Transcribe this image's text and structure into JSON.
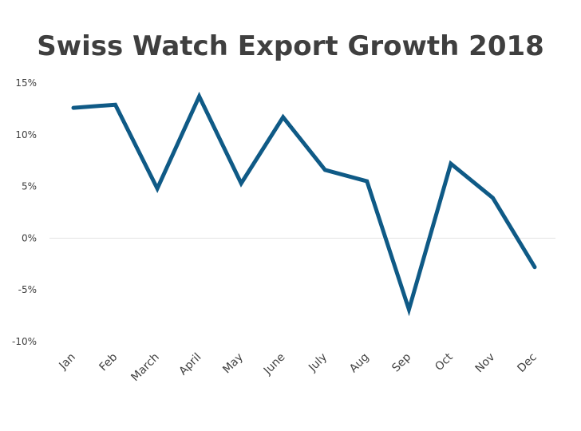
{
  "chart_data": {
    "type": "line",
    "title": "Swiss Watch Export Growth 2018",
    "xlabel": "",
    "ylabel": "",
    "categories": [
      "Jan",
      "Feb",
      "March",
      "April",
      "May",
      "June",
      "July",
      "Aug",
      "Sep",
      "Oct",
      "Nov",
      "Dec"
    ],
    "series": [
      {
        "values": [
          12.6,
          12.9,
          4.8,
          13.7,
          5.3,
          11.7,
          6.6,
          5.5,
          -6.9,
          7.2,
          3.9,
          -2.8
        ]
      }
    ],
    "ylim": [
      -10,
      15
    ],
    "yticks": [
      15,
      10,
      5,
      0,
      -5,
      -10
    ],
    "ytick_labels": [
      "15%",
      "10%",
      "5%",
      "0%",
      "-5%",
      "-10%"
    ],
    "grid": false,
    "legend": "none",
    "line_color": "#0f5a86",
    "zero_line_color": "#e3e3e3"
  }
}
